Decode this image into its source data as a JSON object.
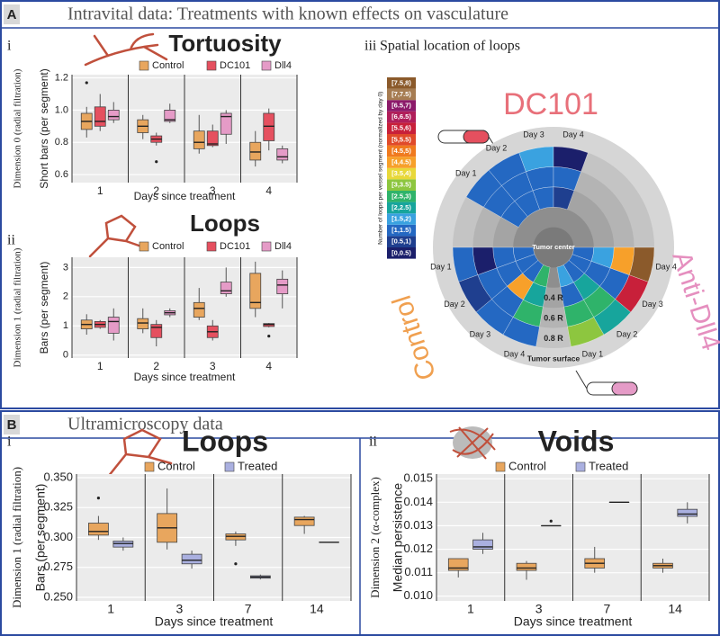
{
  "sections": [
    {
      "label": "A",
      "title": "Intravital data: Treatments with known effects on vasculature"
    },
    {
      "label": "B",
      "title": "Ultramicroscopy data"
    }
  ],
  "chart_data": [
    {
      "type": "box",
      "panel": "i",
      "title": "Tortuosity",
      "dimension_label": "Dimension 0 (radial filtration)",
      "ylabel": "Short bars (per segment)",
      "xlabel": "Days since treatment",
      "categories": [
        "1",
        "2",
        "3",
        "4"
      ],
      "ylim": [
        0.55,
        1.22
      ],
      "yticks": [
        0.6,
        0.8,
        {
          "value": 1,
          "label": "1.0"
        },
        1.2
      ],
      "grid": true,
      "series": [
        {
          "name": "Control",
          "color": "#e8a65e",
          "boxes": [
            {
              "min": 0.83,
              "q1": 0.88,
              "median": 0.93,
              "q3": 0.98,
              "max": 1.02,
              "outliers": [
                1.17
              ]
            },
            {
              "min": 0.82,
              "q1": 0.86,
              "median": 0.9,
              "q3": 0.94,
              "max": 0.97,
              "outliers": []
            },
            {
              "min": 0.73,
              "q1": 0.76,
              "median": 0.8,
              "q3": 0.87,
              "max": 0.97,
              "outliers": []
            },
            {
              "min": 0.65,
              "q1": 0.69,
              "median": 0.74,
              "q3": 0.8,
              "max": 0.87,
              "outliers": []
            }
          ]
        },
        {
          "name": "DC101",
          "color": "#e5505f",
          "boxes": [
            {
              "min": 0.87,
              "q1": 0.9,
              "median": 0.93,
              "q3": 1.02,
              "max": 1.1,
              "outliers": []
            },
            {
              "min": 0.78,
              "q1": 0.8,
              "median": 0.82,
              "q3": 0.84,
              "max": 0.86,
              "outliers": [
                0.68
              ]
            },
            {
              "min": 0.77,
              "q1": 0.78,
              "median": 0.79,
              "q3": 0.87,
              "max": 0.91,
              "outliers": []
            },
            {
              "min": 0.75,
              "q1": 0.81,
              "median": 0.9,
              "q3": 0.98,
              "max": 1.01,
              "outliers": []
            }
          ]
        },
        {
          "name": "Dll4",
          "color": "#e59bc7",
          "boxes": [
            {
              "min": 0.92,
              "q1": 0.94,
              "median": 0.96,
              "q3": 1.0,
              "max": 1.05,
              "outliers": []
            },
            {
              "min": 0.92,
              "q1": 0.93,
              "median": 0.94,
              "q3": 1.0,
              "max": 1.04,
              "outliers": []
            },
            {
              "min": 0.79,
              "q1": 0.85,
              "median": 0.96,
              "q3": 0.98,
              "max": 1.0,
              "outliers": []
            },
            {
              "min": 0.67,
              "q1": 0.69,
              "median": 0.71,
              "q3": 0.76,
              "max": 0.78,
              "outliers": []
            }
          ]
        }
      ]
    },
    {
      "type": "box",
      "panel": "ii",
      "title": "Loops",
      "dimension_label": "Dimension 1 (radial filtration)",
      "ylabel": "Bars (per segment)",
      "xlabel": "Days since treatment",
      "categories": [
        "1",
        "2",
        "3",
        "4"
      ],
      "ylim": [
        -0.1,
        3.35
      ],
      "yticks": [
        0,
        1,
        2,
        3
      ],
      "grid": true,
      "series": [
        {
          "name": "Control",
          "color": "#e8a65e",
          "boxes": [
            {
              "min": 0.7,
              "q1": 0.9,
              "median": 1.05,
              "q3": 1.2,
              "max": 1.4,
              "outliers": []
            },
            {
              "min": 0.75,
              "q1": 0.9,
              "median": 1.1,
              "q3": 1.25,
              "max": 1.6,
              "outliers": []
            },
            {
              "min": 1.2,
              "q1": 1.3,
              "median": 1.6,
              "q3": 1.8,
              "max": 2.3,
              "outliers": []
            },
            {
              "min": 1.3,
              "q1": 1.6,
              "median": 1.8,
              "q3": 2.8,
              "max": 3.2,
              "outliers": []
            }
          ]
        },
        {
          "name": "DC101",
          "color": "#e5505f",
          "boxes": [
            {
              "min": 0.9,
              "q1": 0.95,
              "median": 1.05,
              "q3": 1.15,
              "max": 1.2,
              "outliers": []
            },
            {
              "min": 0.3,
              "q1": 0.6,
              "median": 0.95,
              "q3": 1.05,
              "max": 1.2,
              "outliers": []
            },
            {
              "min": 0.5,
              "q1": 0.6,
              "median": 0.8,
              "q3": 1.0,
              "max": 1.2,
              "outliers": []
            },
            {
              "min": 0.95,
              "q1": 0.98,
              "median": 1.05,
              "q3": 1.08,
              "max": 1.1,
              "outliers": [
                0.65
              ]
            }
          ]
        },
        {
          "name": "Dll4",
          "color": "#e59bc7",
          "boxes": [
            {
              "min": 0.5,
              "q1": 0.75,
              "median": 1.15,
              "q3": 1.3,
              "max": 1.6,
              "outliers": []
            },
            {
              "min": 1.3,
              "q1": 1.38,
              "median": 1.45,
              "q3": 1.52,
              "max": 1.6,
              "outliers": []
            },
            {
              "min": 2.0,
              "q1": 2.1,
              "median": 2.2,
              "q3": 2.5,
              "max": 3.0,
              "outliers": []
            },
            {
              "min": 1.6,
              "q1": 2.1,
              "median": 2.4,
              "q3": 2.6,
              "max": 2.9,
              "outliers": []
            }
          ]
        }
      ]
    },
    {
      "type": "box",
      "panel": "i",
      "title": "Loops",
      "dimension_label": "Dimension 1 (radial filtration)",
      "ylabel": "Bars (per segment)",
      "xlabel": "Days since treatment",
      "categories": [
        "1",
        "3",
        "7",
        "14"
      ],
      "ylim": [
        0.247,
        0.353
      ],
      "yticks": [
        {
          "value": 0.25,
          "label": "0.250"
        },
        0.275,
        {
          "value": 0.3,
          "label": "0.300"
        },
        0.325,
        {
          "value": 0.35,
          "label": "0.350"
        }
      ],
      "grid": true,
      "series": [
        {
          "name": "Control",
          "color": "#e8a65e",
          "boxes": [
            {
              "min": 0.298,
              "q1": 0.302,
              "median": 0.305,
              "q3": 0.312,
              "max": 0.318,
              "outliers": [
                0.333
              ]
            },
            {
              "min": 0.29,
              "q1": 0.296,
              "median": 0.308,
              "q3": 0.32,
              "max": 0.341,
              "outliers": []
            },
            {
              "min": 0.293,
              "q1": 0.298,
              "median": 0.301,
              "q3": 0.303,
              "max": 0.305,
              "outliers": [
                0.278
              ]
            },
            {
              "min": 0.303,
              "q1": 0.31,
              "median": 0.315,
              "q3": 0.317,
              "max": 0.318,
              "outliers": []
            }
          ]
        },
        {
          "name": "Treated",
          "color": "#aab0e0",
          "boxes": [
            {
              "min": 0.289,
              "q1": 0.292,
              "median": 0.295,
              "q3": 0.297,
              "max": 0.3,
              "outliers": []
            },
            {
              "min": 0.274,
              "q1": 0.278,
              "median": 0.281,
              "q3": 0.286,
              "max": 0.289,
              "outliers": []
            },
            {
              "min": 0.265,
              "q1": 0.266,
              "median": 0.267,
              "q3": 0.268,
              "max": 0.269,
              "outliers": []
            },
            {
              "min": 0.296,
              "q1": 0.296,
              "median": 0.296,
              "q3": 0.296,
              "max": 0.296,
              "outliers": []
            }
          ]
        }
      ]
    },
    {
      "type": "box",
      "panel": "ii",
      "title": "Voids",
      "dimension_label": "Dimension 2 (α-complex)",
      "ylabel": "Median persistence",
      "xlabel": "Days since treatment",
      "categories": [
        "1",
        "3",
        "7",
        "14"
      ],
      "ylim": [
        0.0098,
        0.0152
      ],
      "yticks": [
        {
          "value": 0.01,
          "label": "0.010"
        },
        0.011,
        0.012,
        0.013,
        0.014,
        0.015
      ],
      "grid": true,
      "series": [
        {
          "name": "Control",
          "color": "#e8a65e",
          "boxes": [
            {
              "min": 0.0108,
              "q1": 0.0111,
              "median": 0.0112,
              "q3": 0.0116,
              "max": 0.0116,
              "outliers": []
            },
            {
              "min": 0.0107,
              "q1": 0.0111,
              "median": 0.0112,
              "q3": 0.0114,
              "max": 0.0115,
              "outliers": []
            },
            {
              "min": 0.011,
              "q1": 0.0112,
              "median": 0.0114,
              "q3": 0.0116,
              "max": 0.0121,
              "outliers": []
            },
            {
              "min": 0.011,
              "q1": 0.0112,
              "median": 0.0113,
              "q3": 0.0114,
              "max": 0.0116,
              "outliers": []
            }
          ]
        },
        {
          "name": "Treated",
          "color": "#aab0e0",
          "boxes": [
            {
              "min": 0.0118,
              "q1": 0.012,
              "median": 0.0121,
              "q3": 0.0124,
              "max": 0.0127,
              "outliers": []
            },
            {
              "min": 0.013,
              "q1": 0.013,
              "median": 0.013,
              "q3": 0.013,
              "max": 0.013,
              "outliers": [
                0.0132
              ]
            },
            {
              "min": 0.014,
              "q1": 0.014,
              "median": 0.014,
              "q3": 0.014,
              "max": 0.014,
              "outliers": []
            },
            {
              "min": 0.0131,
              "q1": 0.0134,
              "median": 0.0135,
              "q3": 0.0137,
              "max": 0.014,
              "outliers": []
            }
          ]
        }
      ]
    },
    {
      "type": "polar-heatmap",
      "panel": "iii",
      "title": "Spatial location of loops",
      "legend_title": "Number of loops per vessel segment (normalized by day 0)",
      "bin_edges": [
        0,
        0.5,
        1,
        1.5,
        2,
        2.5,
        3,
        3.5,
        4,
        4.5,
        5,
        5.5,
        6,
        6.5,
        7,
        7.5,
        8
      ],
      "bin_labels": [
        "[0,0.5)",
        "[0.5,1)",
        "[1,1.5)",
        "[1.5,2)",
        "[2,2.5)",
        "[2.5,3)",
        "[3,3.5)",
        "[3.5,4)",
        "[4,4.5)",
        "[4.5,5)",
        "[5,5.5)",
        "[5.5,6)",
        "[6,6.5)",
        "[6.5,7)",
        "[7,7.5)",
        "[7.5,8)"
      ],
      "bin_colors": [
        "#1b1f6b",
        "#1f3f8f",
        "#2468c2",
        "#3aa2e0",
        "#17a59c",
        "#2fb36a",
        "#8dc63f",
        "#e8d83a",
        "#f7a02a",
        "#f07a1e",
        "#e04a2a",
        "#c8203a",
        "#b01e5a",
        "#8c1a6a",
        "#a67c52",
        "#8b5a2b"
      ],
      "center_label": "Tumor center",
      "surface_label": "Tumor surface",
      "ring_labels": [
        "0.4 R",
        "0.6 R",
        "0.8 R"
      ],
      "groups": [
        {
          "name": "DC101",
          "color": "#e8707a",
          "days": [
            "Day 1",
            "Day 2",
            "Day 3",
            "Day 4"
          ],
          "values": [
            [
              null,
              1.2,
              1.3,
              1.2
            ],
            [
              null,
              1.2,
              1.3,
              1.2
            ],
            [
              null,
              1.2,
              1.3,
              1.6
            ],
            [
              null,
              0.7,
              1.2,
              0.3
            ]
          ]
        },
        {
          "name": "Anti-Dll4",
          "color": "#e58fbf",
          "days": [
            "Day 1",
            "Day 2",
            "Day 3",
            "Day 4"
          ],
          "values": [
            [
              1.6,
              1.3,
              2.7,
              3.2
            ],
            [
              1.3,
              2.2,
              2.7,
              2.2
            ],
            [
              1.2,
              1.3,
              1.2,
              5.7
            ],
            [
              1.3,
              1.6,
              4.2,
              7.7
            ]
          ]
        },
        {
          "name": "Control",
          "color": "#f0a050",
          "days": [
            "Day 1",
            "Day 2",
            "Day 3",
            "Day 4"
          ],
          "values": [
            [
              1.2,
              1.2,
              0.3,
              1.2
            ],
            [
              1.2,
              1.2,
              1.2,
              0.7
            ],
            [
              1.3,
              4.2,
              1.2,
              1.2
            ],
            [
              2.7,
              2.2,
              2.7,
              1.2
            ]
          ]
        }
      ]
    }
  ]
}
